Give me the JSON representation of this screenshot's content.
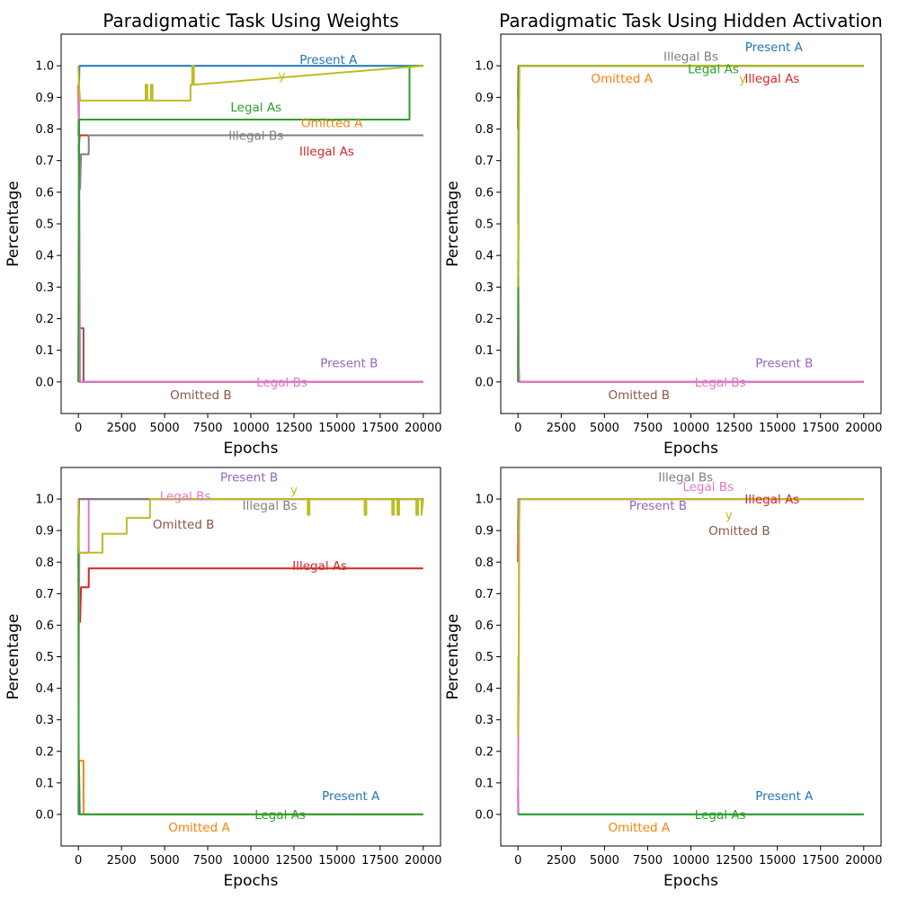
{
  "colors": {
    "Present A": "#1f77b4",
    "Omitted A": "#ff7f0e",
    "Legal As": "#2ca02c",
    "Illegal As": "#d62728",
    "Present B": "#9467bd",
    "Omitted B": "#8c564b",
    "Legal Bs": "#e377c2",
    "Illegal Bs": "#7f7f7f",
    "y": "#bcbd22"
  },
  "chart_data": [
    {
      "type": "line",
      "title": "Paradigmatic Task Using Weights",
      "xlabel": "Epochs",
      "ylabel": "Percentage",
      "xlim": [
        -1000,
        21000
      ],
      "ylim": [
        -0.1,
        1.1
      ],
      "xticks": [
        "0",
        "2500",
        "5000",
        "7500",
        "10000",
        "12500",
        "15000",
        "17500",
        "20000"
      ],
      "xtick_values": [
        0,
        2500,
        5000,
        7500,
        10000,
        12500,
        15000,
        17500,
        20000
      ],
      "yticks": [
        "0.0",
        "0.1",
        "0.2",
        "0.3",
        "0.4",
        "0.5",
        "0.6",
        "0.7",
        "0.8",
        "0.9",
        "1.0"
      ],
      "ytick_values": [
        0,
        0.1,
        0.2,
        0.3,
        0.4,
        0.5,
        0.6,
        0.7,
        0.8,
        0.9,
        1.0
      ],
      "series": [
        {
          "name": "Present A",
          "x": [
            0,
            60,
            100,
            6500,
            6500,
            20000
          ],
          "y": [
            0.78,
            1.0,
            1.0,
            1.0,
            1.0,
            1.0
          ]
        },
        {
          "name": "Illegal As",
          "x": [
            0,
            30,
            80,
            150,
            20000
          ],
          "y": [
            0.94,
            0.75,
            0.78,
            0.78,
            0.78
          ]
        },
        {
          "name": "Omitted B",
          "x": [
            0,
            40,
            80,
            120,
            300,
            300,
            20000
          ],
          "y": [
            0.0,
            0.17,
            0.17,
            0.17,
            0.17,
            0.0,
            0.0
          ]
        },
        {
          "name": "Illegal Bs",
          "x": [
            0,
            30,
            100,
            150,
            150,
            600,
            600,
            20000
          ],
          "y": [
            0.75,
            0.67,
            0.61,
            0.72,
            0.72,
            0.72,
            0.78,
            0.78
          ]
        },
        {
          "name": "Present B",
          "x": [
            0,
            100,
            20000
          ],
          "y": [
            0.0,
            0.0,
            0.0
          ]
        },
        {
          "name": "Legal Bs",
          "x": [
            0,
            30,
            60,
            100,
            150,
            20000
          ],
          "y": [
            0.0,
            0.95,
            0.6,
            0.0,
            0.0,
            0.0
          ]
        },
        {
          "name": "Legal As",
          "x": [
            0,
            50,
            100,
            150,
            19200,
            19200,
            20000
          ],
          "y": [
            0.0,
            0.83,
            0.83,
            0.83,
            0.83,
            1.0,
            1.0
          ]
        },
        {
          "name": "y",
          "x": [
            0,
            40,
            100,
            150,
            3900,
            3900,
            4000,
            4000,
            4200,
            4200,
            4300,
            4300,
            6500,
            6500,
            6600,
            6600,
            6700,
            6700,
            20000
          ],
          "y": [
            1.0,
            0.94,
            0.89,
            0.89,
            0.89,
            0.94,
            0.94,
            0.89,
            0.89,
            0.94,
            0.94,
            0.89,
            0.89,
            0.94,
            0.94,
            1.0,
            1.0,
            0.94,
            1.0
          ]
        }
      ],
      "annotations": [
        {
          "text": "Present A",
          "x": 14500,
          "y": 1.02
        },
        {
          "text": "y",
          "x": 11800,
          "y": 0.97
        },
        {
          "text": "Legal As",
          "x": 10300,
          "y": 0.87
        },
        {
          "text": "Omitted A",
          "x": 14700,
          "y": 0.82
        },
        {
          "text": "Illegal Bs",
          "x": 10300,
          "y": 0.78
        },
        {
          "text": "Illegal As",
          "x": 14400,
          "y": 0.73
        },
        {
          "text": "Present B",
          "x": 15700,
          "y": 0.06
        },
        {
          "text": "Legal Bs",
          "x": 11800,
          "y": 0.0
        },
        {
          "text": "Omitted B",
          "x": 7100,
          "y": -0.04
        }
      ]
    },
    {
      "type": "line",
      "title": "Paradigmatic Task Using Hidden Activation",
      "xlabel": "Epochs",
      "ylabel": "Percentage",
      "xlim": [
        -1000,
        21000
      ],
      "ylim": [
        -0.1,
        1.1
      ],
      "xticks": [
        "0",
        "2500",
        "5000",
        "7500",
        "10000",
        "12500",
        "15000",
        "17500",
        "20000"
      ],
      "xtick_values": [
        0,
        2500,
        5000,
        7500,
        10000,
        12500,
        15000,
        17500,
        20000
      ],
      "yticks": [
        "0.0",
        "0.1",
        "0.2",
        "0.3",
        "0.4",
        "0.5",
        "0.6",
        "0.7",
        "0.8",
        "0.9",
        "1.0"
      ],
      "ytick_values": [
        0,
        0.1,
        0.2,
        0.3,
        0.4,
        0.5,
        0.6,
        0.7,
        0.8,
        0.9,
        1.0
      ],
      "series": [
        {
          "name": "Present A",
          "x": [
            0,
            30,
            60,
            20000
          ],
          "y": [
            0.9,
            1.0,
            1.0,
            1.0
          ]
        },
        {
          "name": "Illegal As",
          "x": [
            0,
            30,
            60,
            20000
          ],
          "y": [
            0.8,
            1.0,
            1.0,
            1.0
          ]
        },
        {
          "name": "Illegal Bs",
          "x": [
            0,
            20,
            40,
            60,
            20000
          ],
          "y": [
            0.38,
            0.35,
            0.9,
            1.0,
            1.0
          ]
        },
        {
          "name": "Omitted B",
          "x": [
            0,
            40,
            20000
          ],
          "y": [
            0.08,
            0.0,
            0.0
          ]
        },
        {
          "name": "Present B",
          "x": [
            0,
            40,
            20000
          ],
          "y": [
            0.0,
            0.0,
            0.0
          ]
        },
        {
          "name": "Legal Bs",
          "x": [
            0,
            20,
            50,
            80,
            20000
          ],
          "y": [
            0.0,
            0.33,
            0.05,
            0.0,
            0.0
          ]
        },
        {
          "name": "Legal As",
          "x": [
            0,
            30,
            60,
            20000
          ],
          "y": [
            0.0,
            0.9,
            1.0,
            1.0
          ]
        },
        {
          "name": "y",
          "x": [
            0,
            20,
            40,
            60,
            80,
            20000
          ],
          "y": [
            0.3,
            0.5,
            0.45,
            0.83,
            1.0,
            1.0
          ]
        }
      ],
      "annotations": [
        {
          "text": "Present A",
          "x": 14800,
          "y": 1.06
        },
        {
          "text": "Illegal Bs",
          "x": 10000,
          "y": 1.03
        },
        {
          "text": "Legal As",
          "x": 11300,
          "y": 0.99
        },
        {
          "text": "Omitted A",
          "x": 6000,
          "y": 0.96
        },
        {
          "text": "y",
          "x": 13000,
          "y": 0.96
        },
        {
          "text": "Illegal As",
          "x": 14700,
          "y": 0.96
        },
        {
          "text": "Present B",
          "x": 15400,
          "y": 0.06
        },
        {
          "text": "Legal Bs",
          "x": 11700,
          "y": 0.0
        },
        {
          "text": "Omitted B",
          "x": 7000,
          "y": -0.04
        }
      ]
    },
    {
      "type": "line",
      "title": "",
      "xlabel": "Epochs",
      "ylabel": "Percentage",
      "xlim": [
        -1000,
        21000
      ],
      "ylim": [
        -0.1,
        1.1
      ],
      "xticks": [
        "0",
        "2500",
        "5000",
        "7500",
        "10000",
        "12500",
        "15000",
        "17500",
        "20000"
      ],
      "xtick_values": [
        0,
        2500,
        5000,
        7500,
        10000,
        12500,
        15000,
        17500,
        20000
      ],
      "yticks": [
        "0.0",
        "0.1",
        "0.2",
        "0.3",
        "0.4",
        "0.5",
        "0.6",
        "0.7",
        "0.8",
        "0.9",
        "1.0"
      ],
      "ytick_values": [
        0,
        0.1,
        0.2,
        0.3,
        0.4,
        0.5,
        0.6,
        0.7,
        0.8,
        0.9,
        1.0
      ],
      "series": [
        {
          "name": "Present A",
          "x": [
            0,
            40,
            80,
            20000
          ],
          "y": [
            0.0,
            0.17,
            0.0,
            0.0
          ]
        },
        {
          "name": "Omitted A",
          "x": [
            0,
            40,
            300,
            300,
            20000
          ],
          "y": [
            0.0,
            0.17,
            0.17,
            0.0,
            0.0
          ]
        },
        {
          "name": "Illegal As",
          "x": [
            0,
            30,
            100,
            150,
            150,
            600,
            600,
            20000
          ],
          "y": [
            0.75,
            0.67,
            0.61,
            0.72,
            0.72,
            0.72,
            0.78,
            0.78
          ]
        },
        {
          "name": "Omitted B",
          "x": [
            0,
            40,
            80,
            20000
          ],
          "y": [
            0.78,
            1.0,
            1.0,
            1.0
          ]
        },
        {
          "name": "Present B",
          "x": [
            0,
            40,
            80,
            20000
          ],
          "y": [
            0.9,
            1.0,
            1.0,
            1.0
          ]
        },
        {
          "name": "Legal Bs",
          "x": [
            0,
            30,
            60,
            100,
            600,
            600,
            20000
          ],
          "y": [
            0.0,
            0.6,
            0.83,
            0.83,
            0.83,
            1.0,
            1.0
          ]
        },
        {
          "name": "Illegal Bs",
          "x": [
            0,
            30,
            60,
            20000
          ],
          "y": [
            0.94,
            1.0,
            1.0,
            1.0
          ]
        },
        {
          "name": "Legal As",
          "x": [
            0,
            20,
            40,
            80,
            20000
          ],
          "y": [
            0.94,
            0.05,
            0.0,
            0.0,
            0.0
          ]
        },
        {
          "name": "y",
          "x": [
            0,
            40,
            150,
            1400,
            1400,
            1700,
            1700,
            2800,
            2800,
            4150,
            4150,
            13300,
            13300,
            13400,
            13400,
            16600,
            16600,
            16700,
            16700,
            18200,
            18200,
            18300,
            18300,
            18500,
            18500,
            18600,
            18600,
            19600,
            19600,
            19700,
            19700,
            19900,
            19900,
            20000
          ],
          "y": [
            1.0,
            0.83,
            0.83,
            0.83,
            0.89,
            0.89,
            0.89,
            0.89,
            0.94,
            0.94,
            1.0,
            1.0,
            0.95,
            0.95,
            1.0,
            1.0,
            0.95,
            0.95,
            1.0,
            1.0,
            0.95,
            0.95,
            1.0,
            1.0,
            0.95,
            0.95,
            1.0,
            1.0,
            0.95,
            0.95,
            1.0,
            1.0,
            0.95,
            1.0
          ]
        }
      ],
      "annotations": [
        {
          "text": "Present B",
          "x": 9900,
          "y": 1.07
        },
        {
          "text": "y",
          "x": 12500,
          "y": 1.03
        },
        {
          "text": "Legal Bs",
          "x": 6200,
          "y": 1.01
        },
        {
          "text": "Illegal Bs",
          "x": 11100,
          "y": 0.98
        },
        {
          "text": "Omitted B",
          "x": 6100,
          "y": 0.92
        },
        {
          "text": "Illegal As",
          "x": 14000,
          "y": 0.79
        },
        {
          "text": "Present A",
          "x": 15800,
          "y": 0.06
        },
        {
          "text": "Legal As",
          "x": 11700,
          "y": 0.0
        },
        {
          "text": "Omitted A",
          "x": 7000,
          "y": -0.04
        }
      ]
    },
    {
      "type": "line",
      "title": "",
      "xlabel": "Epochs",
      "ylabel": "Percentage",
      "xlim": [
        -1000,
        21000
      ],
      "ylim": [
        -0.1,
        1.1
      ],
      "xticks": [
        "0",
        "2500",
        "5000",
        "7500",
        "10000",
        "12500",
        "15000",
        "17500",
        "20000"
      ],
      "xtick_values": [
        0,
        2500,
        5000,
        7500,
        10000,
        12500,
        15000,
        17500,
        20000
      ],
      "yticks": [
        "0.0",
        "0.1",
        "0.2",
        "0.3",
        "0.4",
        "0.5",
        "0.6",
        "0.7",
        "0.8",
        "0.9",
        "1.0"
      ],
      "ytick_values": [
        0,
        0.1,
        0.2,
        0.3,
        0.4,
        0.5,
        0.6,
        0.7,
        0.8,
        0.9,
        1.0
      ],
      "series": [
        {
          "name": "Illegal As",
          "x": [
            0,
            30,
            60,
            20000
          ],
          "y": [
            0.8,
            1.0,
            1.0,
            1.0
          ]
        },
        {
          "name": "Present B",
          "x": [
            0,
            30,
            60,
            20000
          ],
          "y": [
            0.9,
            1.0,
            1.0,
            1.0
          ]
        },
        {
          "name": "Illegal Bs",
          "x": [
            0,
            30,
            60,
            20000
          ],
          "y": [
            0.89,
            1.0,
            1.0,
            1.0
          ]
        },
        {
          "name": "Present A",
          "x": [
            0,
            20,
            40,
            20000
          ],
          "y": [
            0.08,
            0.0,
            0.0,
            0.0
          ]
        },
        {
          "name": "Legal Bs",
          "x": [
            0,
            20,
            40,
            60,
            80,
            20000
          ],
          "y": [
            0.0,
            0.28,
            0.4,
            0.9,
            1.0,
            1.0
          ]
        },
        {
          "name": "Legal As",
          "x": [
            0,
            40,
            20000
          ],
          "y": [
            0.0,
            0.0,
            0.0
          ]
        },
        {
          "name": "y",
          "x": [
            0,
            20,
            40,
            60,
            80,
            20000
          ],
          "y": [
            0.25,
            0.5,
            0.45,
            0.9,
            1.0,
            1.0
          ]
        }
      ],
      "annotations": [
        {
          "text": "Illegal Bs",
          "x": 9700,
          "y": 1.07
        },
        {
          "text": "Legal Bs",
          "x": 11000,
          "y": 1.04
        },
        {
          "text": "Illegal As",
          "x": 14700,
          "y": 1.0
        },
        {
          "text": "Present B",
          "x": 8100,
          "y": 0.98
        },
        {
          "text": "y",
          "x": 12200,
          "y": 0.95
        },
        {
          "text": "Omitted B",
          "x": 12800,
          "y": 0.9
        },
        {
          "text": "Present A",
          "x": 15400,
          "y": 0.06
        },
        {
          "text": "Legal As",
          "x": 11700,
          "y": 0.0
        },
        {
          "text": "Omitted A",
          "x": 7000,
          "y": -0.04
        }
      ]
    }
  ]
}
